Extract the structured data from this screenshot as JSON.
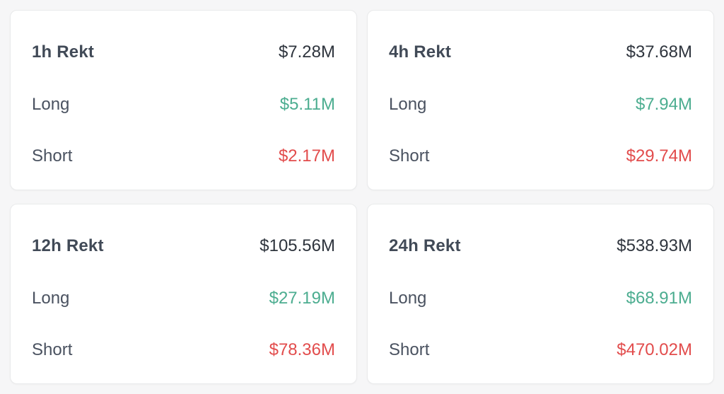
{
  "colors": {
    "page_background": "#f6f6f7",
    "card_background": "#ffffff",
    "card_border": "#e9eaeb",
    "title_text": "#414a57",
    "total_text": "#2e343d",
    "label_text": "#4a5260",
    "long_value": "#4cad90",
    "short_value": "#e24c4c"
  },
  "labels": {
    "long": "Long",
    "short": "Short"
  },
  "cards": [
    {
      "title": "1h Rekt",
      "total": "$7.28M",
      "long": "$5.11M",
      "short": "$2.17M"
    },
    {
      "title": "4h Rekt",
      "total": "$37.68M",
      "long": "$7.94M",
      "short": "$29.74M"
    },
    {
      "title": "12h Rekt",
      "total": "$105.56M",
      "long": "$27.19M",
      "short": "$78.36M"
    },
    {
      "title": "24h Rekt",
      "total": "$538.93M",
      "long": "$68.91M",
      "short": "$470.02M"
    }
  ]
}
